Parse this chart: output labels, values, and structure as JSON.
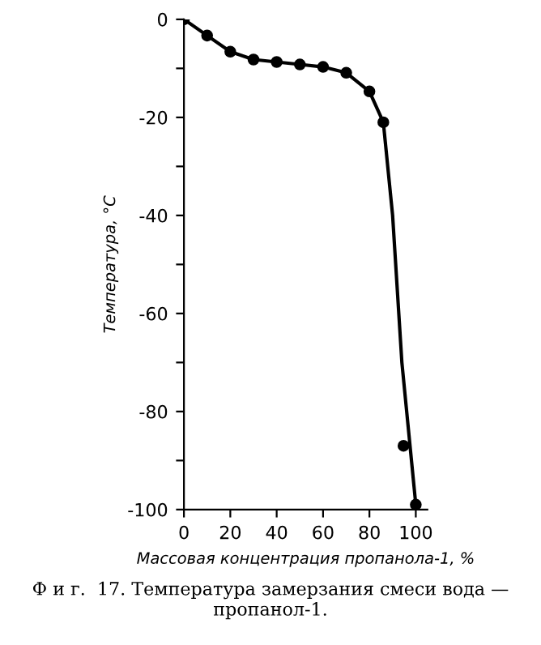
{
  "chart_data": {
    "type": "scatter",
    "xlabel": "Массовая концентрация пропанола-1, %",
    "ylabel": "Температура, °С",
    "annotations": [
      "Ф и г.  17. Температура замерзания смеси вода — пропанол-1."
    ],
    "xlim": [
      0,
      105
    ],
    "ylim": [
      -100,
      0
    ],
    "xticks": [
      0,
      20,
      40,
      60,
      80,
      100
    ],
    "yticks": [
      -100,
      {
        "value": -90,
        "label": null
      },
      -80,
      {
        "value": -70,
        "label": null
      },
      -60,
      {
        "value": -50,
        "label": null
      },
      -40,
      {
        "value": -30,
        "label": null
      },
      -20,
      {
        "value": -10,
        "label": null
      },
      0
    ],
    "grid": false,
    "legend": false,
    "series": [
      {
        "type": "line",
        "color": "#000000",
        "marker": "none",
        "line_style": "solid",
        "x": [
          0,
          10,
          20,
          30,
          40,
          50,
          60,
          70,
          80,
          86,
          90,
          94,
          100
        ],
        "values": [
          0,
          -3.3,
          -6.6,
          -8.2,
          -8.7,
          -9.2,
          -9.7,
          -10.9,
          -14.7,
          -21,
          -40,
          -70,
          -99
        ]
      },
      {
        "color": "#000000",
        "marker": "circle",
        "x": [
          0,
          10,
          20,
          30,
          40,
          50,
          60,
          70,
          80,
          86,
          94.7,
          100
        ],
        "values": [
          0,
          -3.3,
          -6.6,
          -8.2,
          -8.7,
          -9.2,
          -9.7,
          -10.9,
          -14.7,
          -21,
          -87,
          -99
        ]
      }
    ]
  }
}
